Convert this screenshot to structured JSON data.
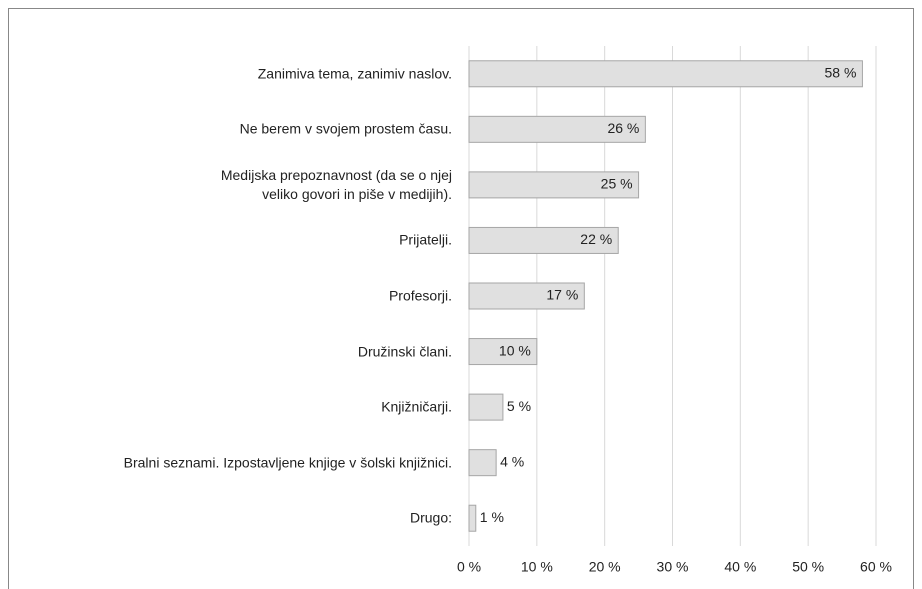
{
  "chart_data": {
    "type": "bar",
    "orientation": "horizontal",
    "categories": [
      "Zanimiva tema, zanimiv naslov.",
      "Ne berem v svojem prostem času.",
      "Medijska prepoznavnost (da se o njej\nveliko govori in piše v medijih).",
      "Prijatelji.",
      "Profesorji.",
      "Družinski člani.",
      "Knjižničarji.",
      "Bralni seznami. Izpostavljene knjige v šolski knjižnici.",
      "Drugo:"
    ],
    "values": [
      58,
      26,
      25,
      22,
      17,
      10,
      5,
      4,
      1
    ],
    "value_labels": [
      "58 %",
      "26 %",
      "25 %",
      "22 %",
      "17 %",
      "10 %",
      "5 %",
      "4 %",
      "1 %"
    ],
    "color": "#e0e0e0",
    "xlim": [
      0,
      60
    ],
    "xticks": [
      {
        "value": 0,
        "label": "0 %"
      },
      {
        "value": 10,
        "label": "10 %"
      },
      {
        "value": 20,
        "label": "20 %"
      },
      {
        "value": 30,
        "label": "30 %"
      },
      {
        "value": 40,
        "label": "40 %"
      },
      {
        "value": 50,
        "label": "50 %"
      },
      {
        "value": 60,
        "label": "60 %"
      }
    ],
    "grid": true
  }
}
